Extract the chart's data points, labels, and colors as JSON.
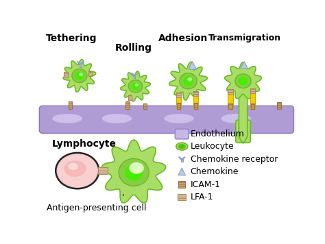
{
  "bg_color": "#ffffff",
  "endothelium_color": "#b09cd4",
  "endothelium_highlight": "#d4c8f0",
  "leukocyte_outer": "#66bb22",
  "leukocyte_fill": "#aadd66",
  "leukocyte_inner": "#44cc00",
  "leukocyte_core": "#ccff88",
  "lymphocyte_fill": "#f8c8c8",
  "lymphocyte_edge": "#d08888",
  "lymphocyte_nucleus": "#f4a0a0",
  "chemokine_receptor_color": "#aabbdd",
  "chemokine_color": "#b8cce8",
  "icam_color": "#c8a070",
  "icam_stripe": "#9a7040",
  "lfa_color": "#d4b896",
  "lfa_stripe": "#b08858",
  "yellow_bond": "#f0d000",
  "yellow_bond_edge": "#c8a800",
  "stage_labels": [
    "Tethering",
    "Rolling",
    "Adhesion",
    "Transmigration"
  ],
  "legend_labels": [
    "Endothelium",
    "Leukocyte",
    "Chemokine receptor",
    "Chemokine",
    "ICAM-1",
    "LFA-1"
  ],
  "bottom_labels": [
    "Lymphocyte",
    "Antigen-presenting cell"
  ]
}
